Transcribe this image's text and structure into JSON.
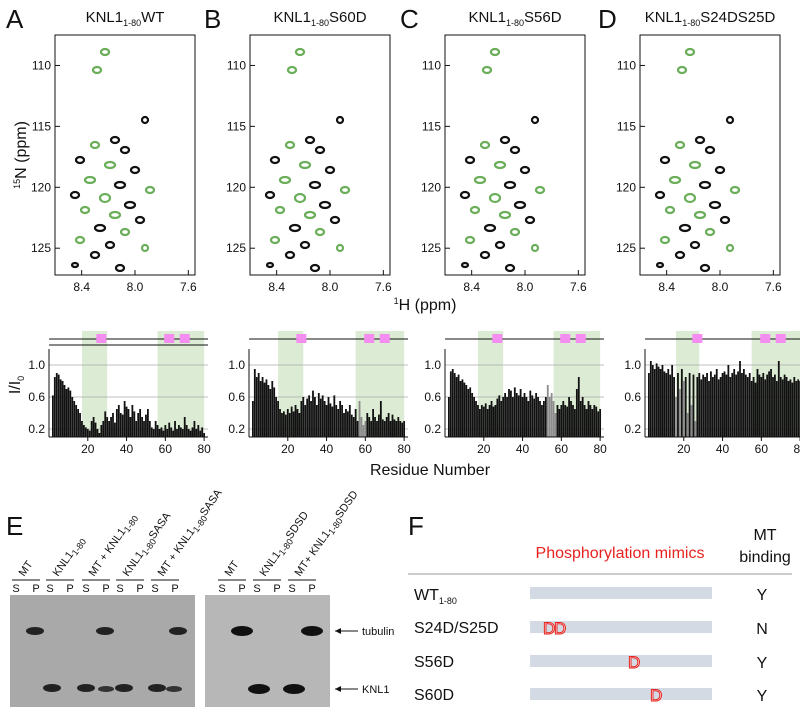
{
  "panel_labels": [
    "A",
    "B",
    "C",
    "D",
    "E",
    "F"
  ],
  "spectra": {
    "y_label": [
      "15",
      "N (ppm)"
    ],
    "x_label": [
      "1",
      "H (ppm)"
    ],
    "xlim": [
      8.6,
      7.55
    ],
    "xticks": [
      {
        "value": 8.4,
        "label": "8.4"
      },
      {
        "value": 8,
        "label": "8.0"
      },
      {
        "value": 7.6,
        "label": "7.6"
      }
    ],
    "ylim": [
      107.5,
      127.2
    ],
    "yticks": [
      110,
      115,
      120,
      125
    ],
    "panels": [
      {
        "title": [
          "KNL1",
          "1-80",
          "WT"
        ]
      },
      {
        "title": [
          "KNL1",
          "1-80",
          "S60D"
        ]
      },
      {
        "title": [
          "KNL1",
          "1-80",
          "S56D"
        ]
      },
      {
        "title": [
          "KNL1",
          "1-80",
          "S24DS25D"
        ]
      }
    ]
  },
  "bar_axes": {
    "y_label": [
      "I/I",
      "0"
    ],
    "x_label": "Residue Number"
  },
  "chart_data": [
    {
      "type": "bar",
      "color": "#111111",
      "highlight_color": "#8c8c8c",
      "shade_color": "#dcebd3",
      "marker_color": "#f38ef0",
      "xlim": [
        0,
        82
      ],
      "xticks": [
        20,
        40,
        60,
        80
      ],
      "ylim": [
        0.1,
        1.2
      ],
      "yticks": [
        0.2,
        0.6,
        {
          "value": 1,
          "label": "1.0"
        }
      ],
      "grid": true,
      "shaded": [
        [
          17,
          30
        ],
        [
          56,
          80
        ]
      ],
      "markers": [
        27,
        62,
        70
      ],
      "gray_x": [],
      "x": [
        1,
        2,
        3,
        4,
        5,
        6,
        7,
        8,
        9,
        10,
        11,
        12,
        13,
        14,
        15,
        16,
        17,
        18,
        19,
        20,
        21,
        22,
        23,
        24,
        25,
        26,
        27,
        28,
        29,
        30,
        31,
        32,
        33,
        34,
        35,
        36,
        37,
        38,
        39,
        40,
        41,
        42,
        43,
        44,
        45,
        46,
        47,
        48,
        49,
        50,
        51,
        52,
        53,
        54,
        55,
        56,
        57,
        58,
        59,
        60,
        61,
        62,
        63,
        64,
        65,
        66,
        67,
        68,
        69,
        70,
        71,
        72,
        73,
        74,
        75,
        76,
        77,
        78,
        79,
        80
      ],
      "values": [
        null,
        0.62,
        0.85,
        0.9,
        0.88,
        0.82,
        0.8,
        0.75,
        0.7,
        0.72,
        0.68,
        0.6,
        0.55,
        0.5,
        0.45,
        0.4,
        0.3,
        0.25,
        0.22,
        0.2,
        0.18,
        0.3,
        0.35,
        0.28,
        0.2,
        0.15,
        0.25,
        0.3,
        0.42,
        0.35,
        0.3,
        0.35,
        0.4,
        0.28,
        0.45,
        0.5,
        0.4,
        0.38,
        0.55,
        0.48,
        0.45,
        0.35,
        0.5,
        0.42,
        0.3,
        0.4,
        0.45,
        0.35,
        0.3,
        0.38,
        0.45,
        0.3,
        0.22,
        0.2,
        0.3,
        0.25,
        0.2,
        0.22,
        0.18,
        0.25,
        0.2,
        0.28,
        0.22,
        0.18,
        0.3,
        0.2,
        0.25,
        0.22,
        0.2,
        0.35,
        0.25,
        0.2,
        0.18,
        0.22,
        0.3,
        0.2,
        0.25,
        0.18,
        0.22,
        0.15
      ]
    },
    {
      "type": "bar",
      "color": "#111111",
      "highlight_color": "#8c8c8c",
      "shade_color": "#dcebd3",
      "marker_color": "#f38ef0",
      "xlim": [
        0,
        82
      ],
      "xticks": [
        20,
        40,
        60,
        80
      ],
      "ylim": [
        0.1,
        1.2
      ],
      "yticks": [
        0.2,
        0.6,
        {
          "value": 1,
          "label": "1.0"
        }
      ],
      "grid": true,
      "shaded": [
        [
          15,
          28
        ],
        [
          55,
          80
        ]
      ],
      "markers": [
        27,
        62,
        70
      ],
      "gray_x": [
        57,
        58,
        59,
        60
      ],
      "x": [
        1,
        2,
        3,
        4,
        5,
        6,
        7,
        8,
        9,
        10,
        11,
        12,
        13,
        14,
        15,
        16,
        17,
        18,
        19,
        20,
        21,
        22,
        23,
        24,
        25,
        26,
        27,
        28,
        29,
        30,
        31,
        32,
        33,
        34,
        35,
        36,
        37,
        38,
        39,
        40,
        41,
        42,
        43,
        44,
        45,
        46,
        47,
        48,
        49,
        50,
        51,
        52,
        53,
        54,
        55,
        56,
        57,
        58,
        59,
        60,
        61,
        62,
        63,
        64,
        65,
        66,
        67,
        68,
        69,
        70,
        71,
        72,
        73,
        74,
        75,
        76,
        77,
        78,
        79,
        80
      ],
      "values": [
        null,
        0.55,
        0.95,
        0.85,
        0.9,
        0.8,
        0.85,
        0.78,
        0.82,
        0.75,
        0.7,
        0.8,
        0.72,
        0.6,
        0.55,
        0.45,
        0.4,
        0.42,
        0.38,
        0.45,
        0.4,
        0.48,
        0.42,
        0.5,
        0.45,
        0.4,
        0.55,
        0.6,
        0.5,
        0.58,
        0.62,
        0.55,
        0.68,
        0.6,
        0.5,
        0.65,
        0.58,
        0.62,
        0.55,
        0.5,
        0.6,
        0.52,
        0.48,
        0.62,
        0.5,
        0.45,
        0.55,
        0.5,
        0.4,
        0.45,
        0.42,
        0.5,
        0.38,
        0.35,
        0.45,
        0.3,
        0.55,
        0.35,
        0.25,
        0.3,
        0.4,
        0.35,
        0.3,
        0.45,
        0.35,
        0.3,
        0.38,
        0.55,
        0.32,
        0.3,
        0.35,
        0.4,
        0.3,
        0.38,
        0.32,
        0.3,
        0.35,
        0.3,
        0.28,
        0.3
      ]
    },
    {
      "type": "bar",
      "color": "#111111",
      "highlight_color": "#8c8c8c",
      "shade_color": "#dcebd3",
      "marker_color": "#f38ef0",
      "xlim": [
        0,
        82
      ],
      "xticks": [
        20,
        40,
        60,
        80
      ],
      "ylim": [
        0.1,
        1.2
      ],
      "yticks": [
        0.2,
        0.6,
        {
          "value": 1,
          "label": "1.0"
        }
      ],
      "grid": true,
      "shaded": [
        [
          17,
          30
        ],
        [
          56,
          80
        ]
      ],
      "markers": [
        27,
        62,
        70
      ],
      "gray_x": [
        53,
        54,
        55,
        56,
        57
      ],
      "x": [
        1,
        2,
        3,
        4,
        5,
        6,
        7,
        8,
        9,
        10,
        11,
        12,
        13,
        14,
        15,
        16,
        17,
        18,
        19,
        20,
        21,
        22,
        23,
        24,
        25,
        26,
        27,
        28,
        29,
        30,
        31,
        32,
        33,
        34,
        35,
        36,
        37,
        38,
        39,
        40,
        41,
        42,
        43,
        44,
        45,
        46,
        47,
        48,
        49,
        50,
        51,
        52,
        53,
        54,
        55,
        56,
        57,
        58,
        59,
        60,
        61,
        62,
        63,
        64,
        65,
        66,
        67,
        68,
        69,
        70,
        71,
        72,
        73,
        74,
        75,
        76,
        77,
        78,
        79,
        80
      ],
      "values": [
        null,
        0.6,
        0.92,
        0.95,
        0.9,
        0.85,
        0.88,
        0.8,
        0.82,
        0.78,
        0.75,
        0.7,
        0.72,
        0.65,
        0.6,
        0.55,
        0.5,
        0.45,
        0.5,
        0.48,
        0.52,
        0.45,
        0.5,
        0.55,
        0.48,
        0.5,
        0.58,
        0.62,
        0.55,
        0.6,
        0.65,
        0.6,
        0.7,
        0.68,
        0.6,
        0.72,
        0.65,
        0.62,
        0.7,
        0.6,
        0.65,
        0.6,
        0.55,
        0.68,
        0.62,
        0.58,
        0.65,
        0.6,
        0.55,
        0.5,
        0.55,
        0.6,
        0.75,
        0.6,
        0.65,
        0.55,
        0.4,
        0.5,
        0.45,
        0.5,
        0.55,
        0.5,
        0.48,
        0.6,
        0.55,
        0.5,
        0.45,
        0.7,
        0.85,
        0.55,
        0.6,
        0.5,
        0.45,
        0.55,
        0.5,
        0.45,
        0.5,
        0.48,
        0.42,
        0.45
      ]
    },
    {
      "type": "bar",
      "color": "#111111",
      "highlight_color": "#8c8c8c",
      "shade_color": "#dcebd3",
      "marker_color": "#f38ef0",
      "xlim": [
        0,
        82
      ],
      "xticks": [
        20,
        40,
        60,
        80
      ],
      "ylim": [
        0.1,
        1.2
      ],
      "yticks": [
        0.2,
        0.6,
        {
          "value": 1,
          "label": "1.0"
        }
      ],
      "grid": true,
      "shaded": [
        [
          16,
          28
        ],
        [
          55,
          80
        ]
      ],
      "markers": [
        27,
        62,
        70
      ],
      "gray_x": [
        16,
        18,
        20,
        22,
        24,
        26
      ],
      "x": [
        1,
        2,
        3,
        4,
        5,
        6,
        7,
        8,
        9,
        10,
        11,
        12,
        13,
        14,
        15,
        16,
        17,
        18,
        19,
        20,
        21,
        22,
        23,
        24,
        25,
        26,
        27,
        28,
        29,
        30,
        31,
        32,
        33,
        34,
        35,
        36,
        37,
        38,
        39,
        40,
        41,
        42,
        43,
        44,
        45,
        46,
        47,
        48,
        49,
        50,
        51,
        52,
        53,
        54,
        55,
        56,
        57,
        58,
        59,
        60,
        61,
        62,
        63,
        64,
        65,
        66,
        67,
        68,
        69,
        70,
        71,
        72,
        73,
        74,
        75,
        76,
        77,
        78,
        79,
        80
      ],
      "values": [
        null,
        0.9,
        1.05,
        1.0,
        0.95,
        1.02,
        0.98,
        0.95,
        1.0,
        0.92,
        0.9,
        0.95,
        0.88,
        1.0,
        0.85,
        0.6,
        0.9,
        0.7,
        0.95,
        0.8,
        0.85,
        0.4,
        0.9,
        0.5,
        0.88,
        0.3,
        0.85,
        0.9,
        0.82,
        0.88,
        0.85,
        0.9,
        0.8,
        0.92,
        0.85,
        0.88,
        0.95,
        0.82,
        0.85,
        0.9,
        0.92,
        0.88,
        1.0,
        0.85,
        0.9,
        0.95,
        0.88,
        0.92,
        1.05,
        0.9,
        0.95,
        0.88,
        0.85,
        0.9,
        0.8,
        0.85,
        0.78,
        0.95,
        0.88,
        0.85,
        0.9,
        0.82,
        0.88,
        0.92,
        0.95,
        0.85,
        0.88,
        0.8,
        1.05,
        0.85,
        0.82,
        0.88,
        0.85,
        0.8,
        0.82,
        0.78,
        0.85,
        0.8,
        0.82,
        0.8
      ]
    }
  ],
  "gel": {
    "lanes_left": [
      [
        "MT"
      ],
      [
        "KNL1",
        "1-80"
      ],
      [
        "MT + KNL1",
        "1-80"
      ],
      [
        "KNL1",
        "1-80",
        "SASA"
      ],
      [
        "MT + KNL1",
        "1-80",
        "SASA"
      ]
    ],
    "lanes_right": [
      [
        "MT"
      ],
      [
        "KNL1",
        "1-80",
        "SDSD"
      ],
      [
        "MT+ KNL1",
        "1-80",
        "SDSD"
      ]
    ],
    "fractions": [
      "S",
      "P"
    ],
    "bands": [
      "tubulin",
      "KNL1"
    ]
  },
  "table": {
    "header_mimics": "Phosphorylation mimics",
    "header_binding": [
      "MT",
      "binding"
    ],
    "rows": [
      {
        "name": [
          "WT",
          "1-80"
        ],
        "binding": "Y"
      },
      {
        "name": [
          "S24D/S25D"
        ],
        "mimics": [
          "D",
          "D"
        ],
        "binding": "N"
      },
      {
        "name": [
          "S56D"
        ],
        "mimics": [
          "D"
        ],
        "binding": "Y"
      },
      {
        "name": [
          "S60D"
        ],
        "mimics": [
          "D"
        ],
        "binding": "Y"
      }
    ]
  }
}
